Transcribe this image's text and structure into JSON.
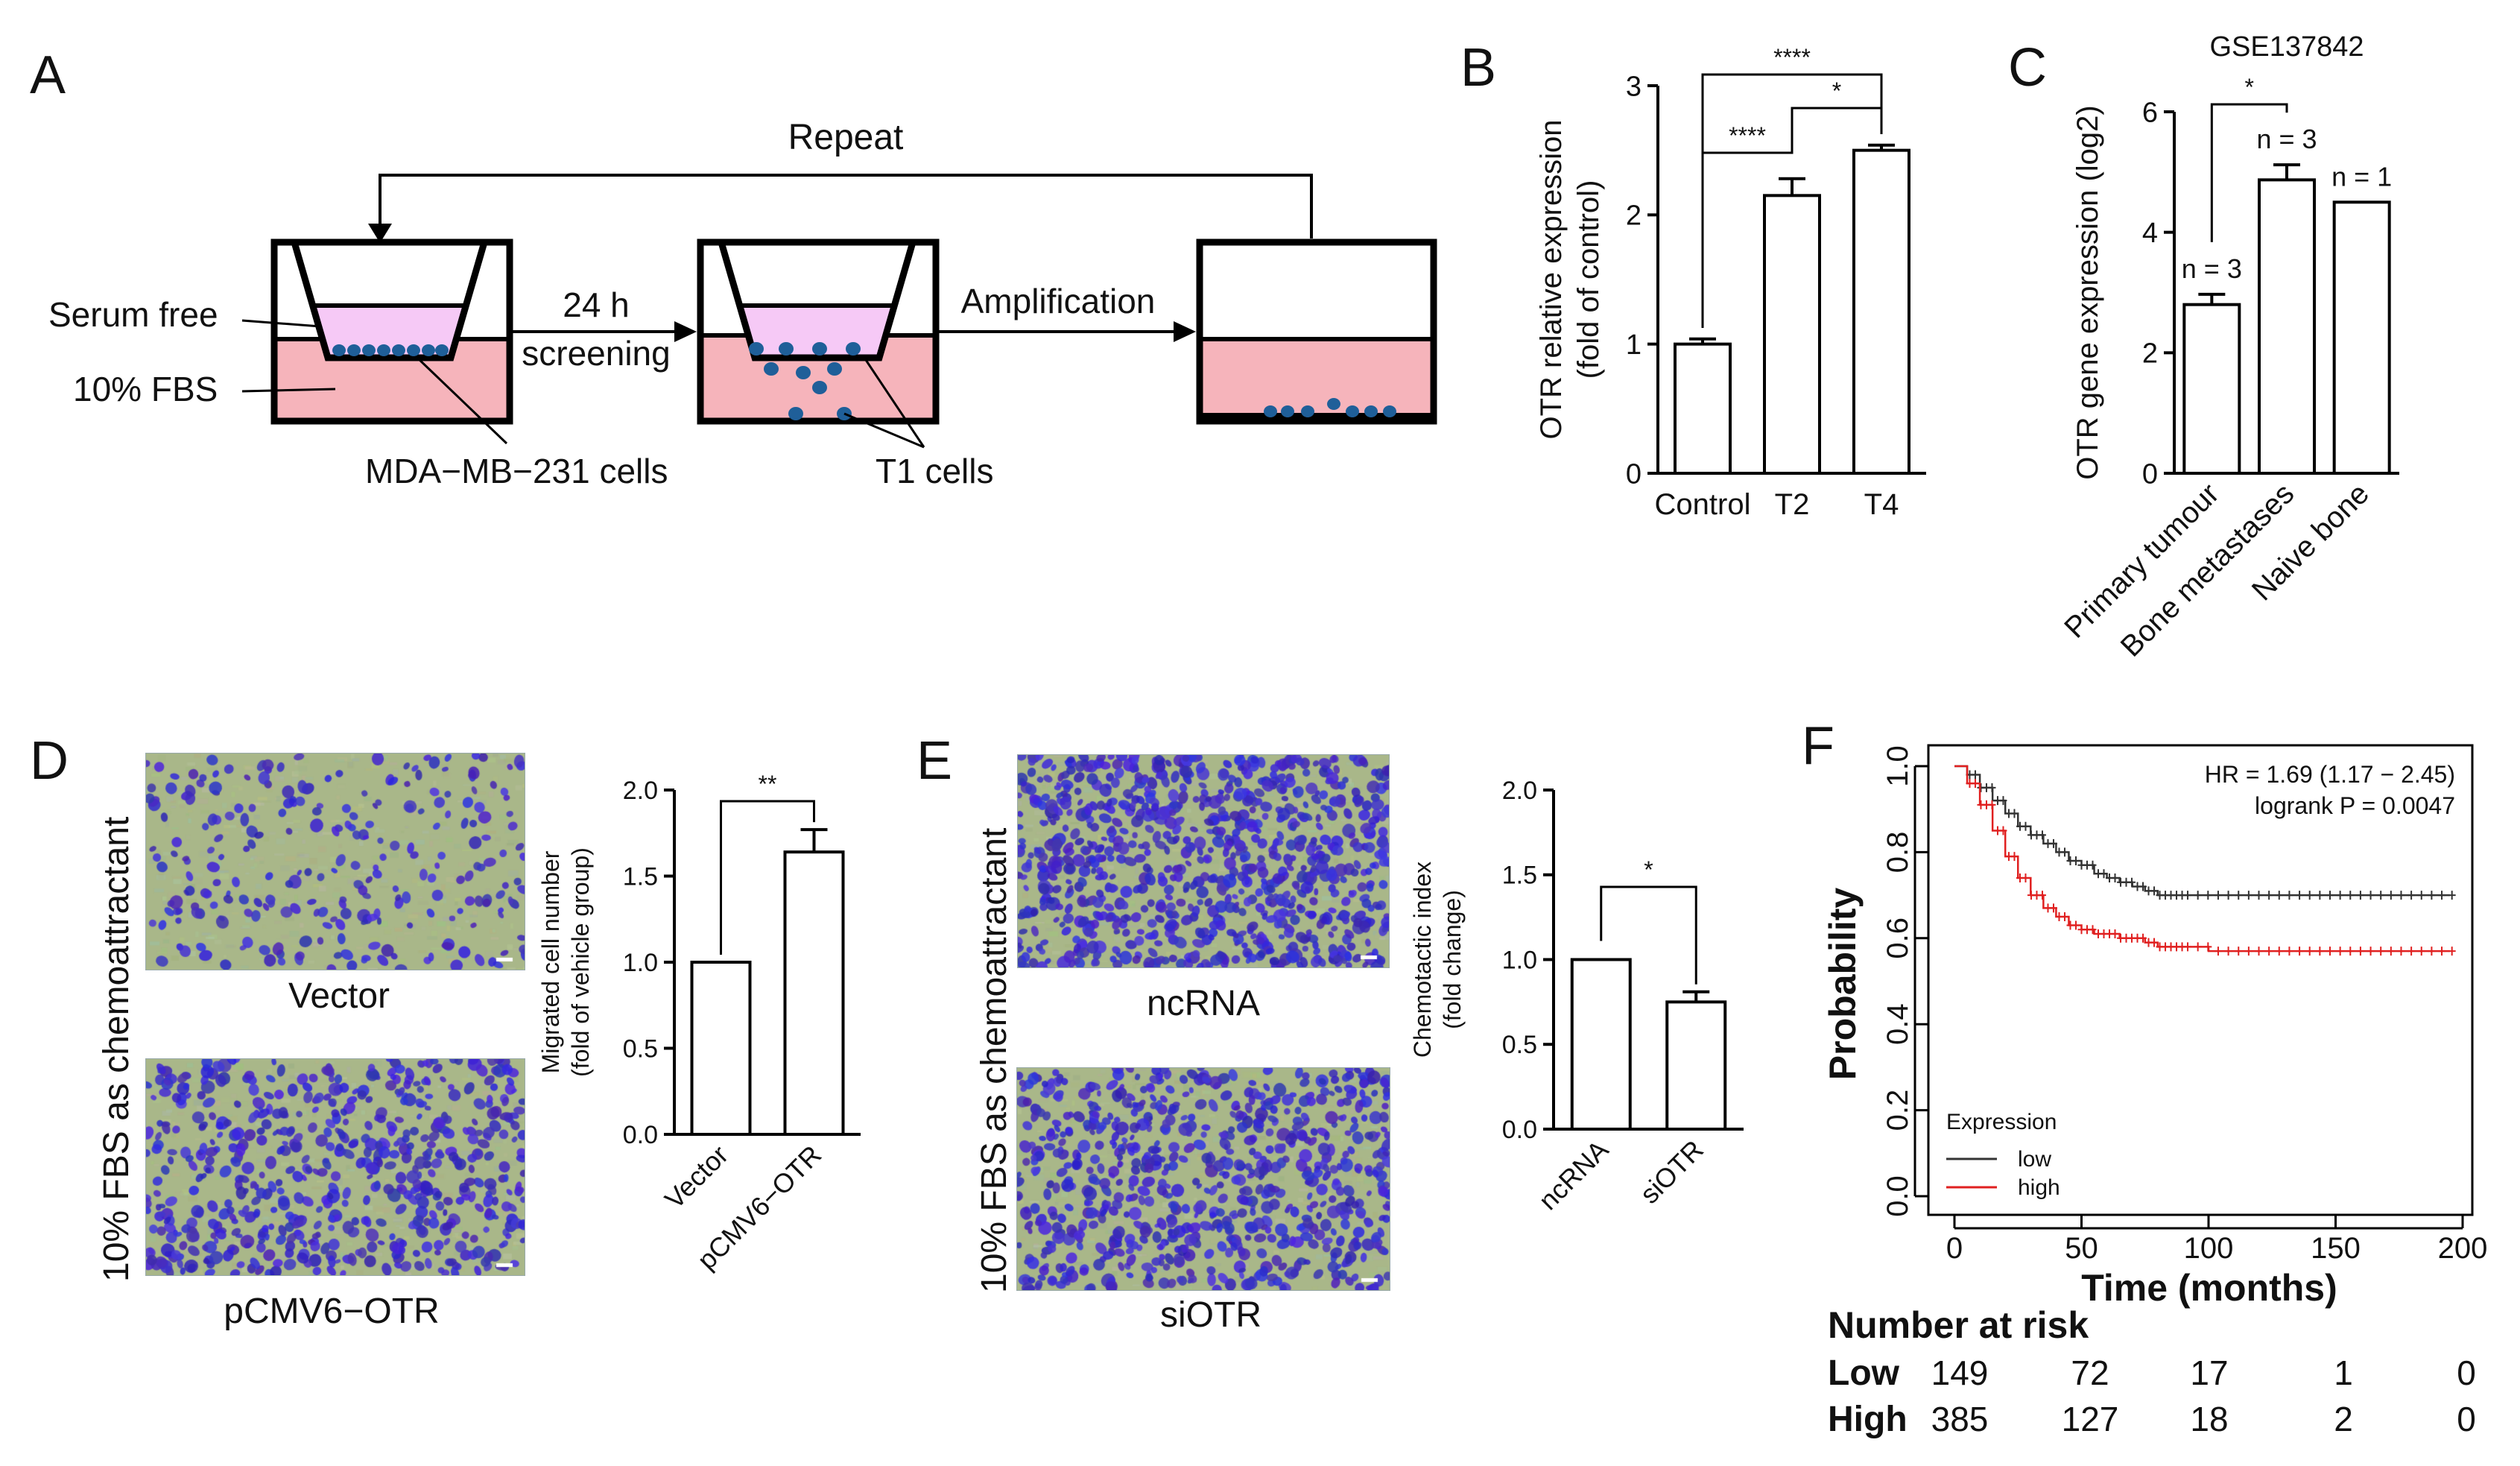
{
  "colors": {
    "bar_fill": "#ffffff",
    "bar_stroke": "#000000",
    "medium_upper": "#f6c9f6",
    "medium_lower": "#f6b4bb",
    "cell_blue": "#1f5f99",
    "stain_bg": "#a9b789",
    "stain_cell": "#3a2fd0",
    "km_low": "#333333",
    "km_high": "#e02020"
  },
  "panels": {
    "A": {
      "label": "A",
      "repeat": "Repeat",
      "serum_free": "Serum free",
      "fbs": "10% FBS",
      "time": "24 h",
      "screening": "screening",
      "amplification": "Amplification",
      "mda_cells": "MDA−MB−231 cells",
      "t1_cells": "T1 cells"
    },
    "B": {
      "label": "B"
    },
    "C": {
      "label": "C"
    },
    "D": {
      "label": "D",
      "side_label": "10% FBS as chemoattractant",
      "img_top_caption": "Vector",
      "img_bottom_caption": "pCMV6−OTR"
    },
    "E": {
      "label": "E",
      "side_label": "10% FBS as chemoattractant",
      "img_top_caption": "ncRNA",
      "img_bottom_caption": "siOTR"
    },
    "F": {
      "label": "F",
      "hr": "HR = 1.69 (1.17 − 2.45)",
      "logrank": "logrank P = 0.0047",
      "legend_title": "Expression",
      "legend_low": "low",
      "legend_high": "high",
      "risk_title": "Number at risk",
      "risk_rows": [
        {
          "group": "Low",
          "values": [
            "149",
            "72",
            "17",
            "1",
            "0"
          ]
        },
        {
          "group": "High",
          "values": [
            "385",
            "127",
            "18",
            "2",
            "0"
          ]
        }
      ]
    }
  },
  "chart_data": [
    {
      "id": "B",
      "type": "bar",
      "title": "",
      "categories": [
        "Control",
        "T2",
        "T4"
      ],
      "values": [
        1.0,
        2.15,
        2.5
      ],
      "errors": [
        0.04,
        0.13,
        0.04
      ],
      "ylabel": "OTR relative expression\n(fold of control)",
      "ylabel_lines": [
        "OTR relative expression",
        "(fold of control)"
      ],
      "ylim": [
        0,
        3
      ],
      "yticks": [
        "0",
        "1",
        "2",
        "3"
      ],
      "significance": [
        {
          "from": 0,
          "to": 2,
          "label": "****"
        },
        {
          "from": 1,
          "to": 2,
          "label": "*"
        },
        {
          "from": 0,
          "to": 1,
          "label": "****"
        }
      ]
    },
    {
      "id": "C",
      "type": "bar",
      "title": "GSE137842",
      "categories": [
        "Primary tumour",
        "Bone metastases",
        "Naive bone"
      ],
      "values": [
        2.8,
        4.87,
        4.5
      ],
      "errors": [
        0.17,
        0.25,
        0
      ],
      "ylabel": "OTR gene expression (log2)",
      "ylabel_lines": [
        "OTR gene expression (log2)"
      ],
      "ylim": [
        0,
        6
      ],
      "yticks": [
        "0",
        "2",
        "4",
        "6"
      ],
      "n_labels": [
        "n = 3",
        "n = 3",
        "n = 1"
      ],
      "significance": [
        {
          "from": 0,
          "to": 1,
          "label": "*"
        }
      ]
    },
    {
      "id": "D",
      "type": "bar",
      "title": "",
      "categories": [
        "Vector",
        "pCMV6−OTR"
      ],
      "values": [
        1.0,
        1.64
      ],
      "errors": [
        0,
        0.13
      ],
      "ylabel": "Migrated cell number\n(fold of vehicle group)",
      "ylabel_lines": [
        "Migrated cell number",
        "(fold of vehicle group)"
      ],
      "ylim": [
        0,
        2.0
      ],
      "yticks": [
        "0.0",
        "0.5",
        "1.0",
        "1.5",
        "2.0"
      ],
      "significance": [
        {
          "from": 0,
          "to": 1,
          "label": "**"
        }
      ]
    },
    {
      "id": "E",
      "type": "bar",
      "title": "",
      "categories": [
        "ncRNA",
        "siOTR"
      ],
      "values": [
        1.0,
        0.75
      ],
      "errors": [
        0,
        0.06
      ],
      "ylabel": "Chemotactic index\n(fold change)",
      "ylabel_lines": [
        "Chemotactic index",
        "(fold change)"
      ],
      "ylim": [
        0,
        2.0
      ],
      "yticks": [
        "0.0",
        "0.5",
        "1.0",
        "1.5",
        "2.0"
      ],
      "significance": [
        {
          "from": 0,
          "to": 1,
          "label": "*"
        }
      ]
    },
    {
      "id": "F",
      "type": "line",
      "title": "",
      "xlabel": "Time (months)",
      "ylabel": "Probability",
      "xlim": [
        0,
        200
      ],
      "ylim": [
        0,
        1.0
      ],
      "xticks": [
        "0",
        "50",
        "100",
        "150",
        "200"
      ],
      "yticks": [
        "0.0",
        "0.2",
        "0.4",
        "0.6",
        "0.8",
        "1.0"
      ],
      "series": [
        {
          "name": "low",
          "x": [
            0,
            5,
            10,
            15,
            20,
            25,
            30,
            35,
            40,
            45,
            50,
            55,
            60,
            65,
            70,
            75,
            80,
            100,
            130,
            160,
            195
          ],
          "y": [
            1.0,
            0.98,
            0.95,
            0.92,
            0.89,
            0.86,
            0.84,
            0.82,
            0.8,
            0.78,
            0.77,
            0.75,
            0.74,
            0.73,
            0.72,
            0.71,
            0.7,
            0.7,
            0.7,
            0.7,
            0.7
          ]
        },
        {
          "name": "high",
          "x": [
            0,
            5,
            10,
            15,
            20,
            25,
            30,
            35,
            40,
            45,
            50,
            55,
            60,
            65,
            70,
            75,
            80,
            100,
            130,
            160,
            195
          ],
          "y": [
            1.0,
            0.96,
            0.91,
            0.85,
            0.79,
            0.74,
            0.7,
            0.67,
            0.65,
            0.63,
            0.62,
            0.61,
            0.61,
            0.6,
            0.6,
            0.59,
            0.58,
            0.57,
            0.57,
            0.57,
            0.57
          ]
        }
      ],
      "risk_table": {
        "times": [
          0,
          50,
          100,
          150,
          200
        ],
        "low": [
          149,
          72,
          17,
          1,
          0
        ],
        "high": [
          385,
          127,
          18,
          2,
          0
        ]
      }
    }
  ]
}
